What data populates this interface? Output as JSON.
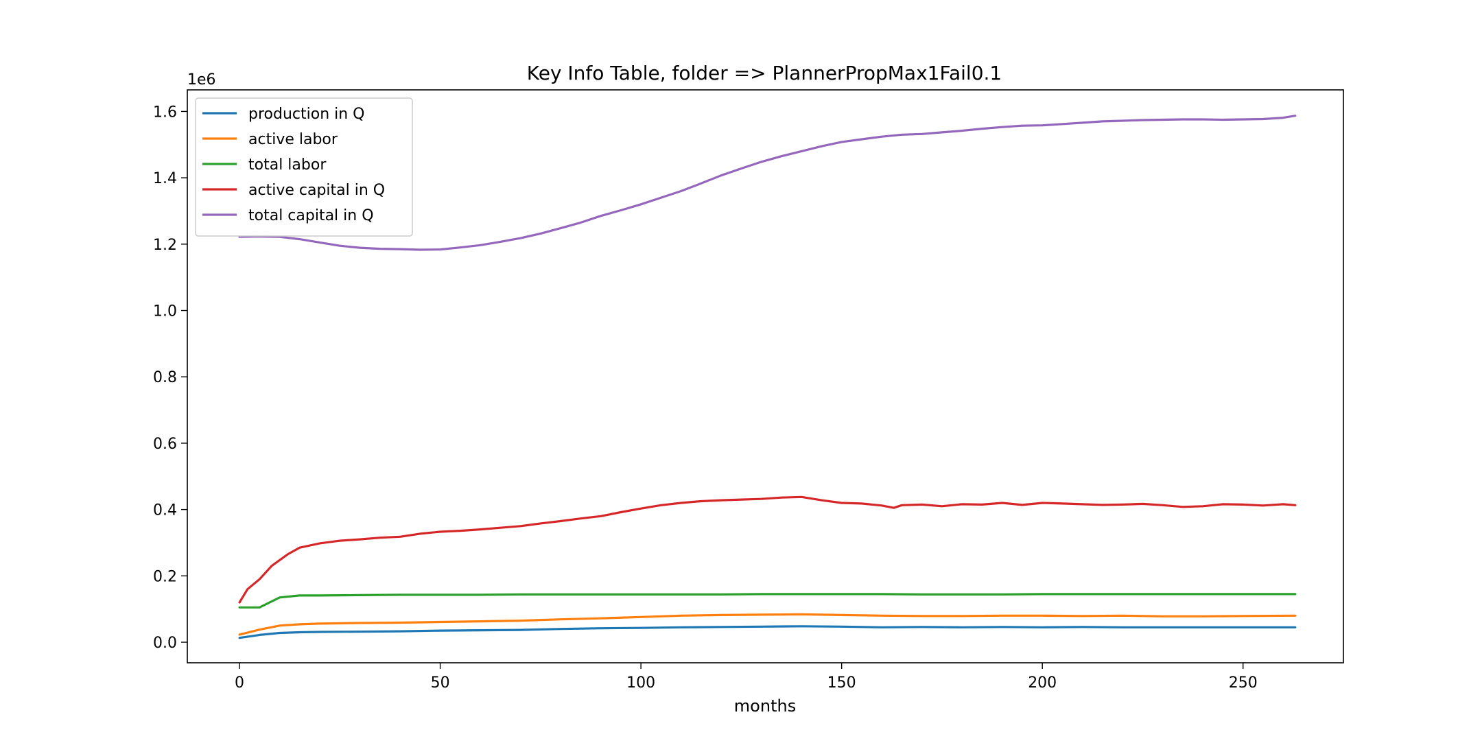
{
  "chart_data": {
    "type": "line",
    "title": "Key Info Table, folder => PlannerPropMax1Fail0.1",
    "xlabel": "months",
    "ylabel": "",
    "y_multiplier_label": "1e6",
    "xlim": [
      -13,
      275
    ],
    "ylim": [
      -0.062,
      1.665
    ],
    "x_ticks": [
      0,
      50,
      100,
      150,
      200,
      250
    ],
    "y_ticks": [
      0.0,
      0.2,
      0.4,
      0.6,
      0.8,
      1.0,
      1.2,
      1.4,
      1.6
    ],
    "x_tick_labels": [
      "0",
      "50",
      "100",
      "150",
      "200",
      "250"
    ],
    "y_tick_labels": [
      "0.0",
      "0.2",
      "0.4",
      "0.6",
      "0.8",
      "1.0",
      "1.2",
      "1.4",
      "1.6"
    ],
    "grid": false,
    "legend_position": "top-left",
    "series": [
      {
        "name": "production in Q",
        "color": "#1f77b4",
        "x": [
          0,
          5,
          10,
          15,
          20,
          30,
          40,
          50,
          60,
          70,
          80,
          90,
          100,
          110,
          120,
          130,
          140,
          150,
          160,
          170,
          180,
          190,
          200,
          210,
          220,
          230,
          240,
          250,
          263
        ],
        "values": [
          0.013,
          0.022,
          0.028,
          0.03,
          0.031,
          0.032,
          0.033,
          0.035,
          0.036,
          0.037,
          0.04,
          0.042,
          0.043,
          0.045,
          0.046,
          0.047,
          0.048,
          0.047,
          0.045,
          0.046,
          0.045,
          0.046,
          0.045,
          0.046,
          0.045,
          0.045,
          0.045,
          0.045,
          0.045
        ]
      },
      {
        "name": "active labor",
        "color": "#ff7f0e",
        "x": [
          0,
          5,
          10,
          15,
          20,
          30,
          40,
          50,
          60,
          70,
          80,
          90,
          100,
          110,
          120,
          130,
          140,
          150,
          160,
          170,
          180,
          190,
          200,
          210,
          220,
          230,
          240,
          250,
          263
        ],
        "values": [
          0.023,
          0.038,
          0.05,
          0.054,
          0.056,
          0.058,
          0.059,
          0.061,
          0.063,
          0.065,
          0.069,
          0.072,
          0.076,
          0.08,
          0.082,
          0.083,
          0.084,
          0.082,
          0.08,
          0.079,
          0.079,
          0.08,
          0.08,
          0.079,
          0.08,
          0.078,
          0.078,
          0.079,
          0.08
        ]
      },
      {
        "name": "total labor",
        "color": "#2ca02c",
        "x": [
          0,
          5,
          10,
          15,
          20,
          30,
          40,
          50,
          60,
          70,
          80,
          90,
          100,
          110,
          120,
          130,
          140,
          150,
          160,
          170,
          180,
          190,
          200,
          210,
          220,
          230,
          240,
          250,
          263
        ],
        "values": [
          0.105,
          0.105,
          0.135,
          0.141,
          0.141,
          0.142,
          0.143,
          0.143,
          0.143,
          0.144,
          0.144,
          0.144,
          0.144,
          0.144,
          0.144,
          0.145,
          0.145,
          0.145,
          0.145,
          0.144,
          0.144,
          0.144,
          0.145,
          0.145,
          0.145,
          0.145,
          0.145,
          0.145,
          0.145
        ]
      },
      {
        "name": "active capital in Q",
        "color": "#d62728",
        "x": [
          0,
          2,
          5,
          8,
          12,
          15,
          20,
          25,
          30,
          35,
          40,
          45,
          50,
          55,
          60,
          65,
          70,
          75,
          80,
          85,
          90,
          95,
          100,
          105,
          110,
          115,
          120,
          125,
          130,
          135,
          140,
          145,
          150,
          155,
          160,
          163,
          165,
          170,
          175,
          180,
          185,
          190,
          195,
          200,
          205,
          210,
          215,
          220,
          225,
          230,
          235,
          240,
          245,
          250,
          255,
          260,
          263
        ],
        "values": [
          0.12,
          0.16,
          0.19,
          0.23,
          0.265,
          0.285,
          0.298,
          0.306,
          0.31,
          0.315,
          0.318,
          0.327,
          0.333,
          0.336,
          0.34,
          0.345,
          0.35,
          0.358,
          0.365,
          0.373,
          0.38,
          0.392,
          0.403,
          0.413,
          0.42,
          0.425,
          0.428,
          0.43,
          0.432,
          0.436,
          0.438,
          0.428,
          0.42,
          0.418,
          0.412,
          0.405,
          0.413,
          0.415,
          0.41,
          0.416,
          0.415,
          0.42,
          0.414,
          0.42,
          0.418,
          0.416,
          0.414,
          0.415,
          0.417,
          0.413,
          0.408,
          0.41,
          0.416,
          0.415,
          0.412,
          0.416,
          0.413
        ]
      },
      {
        "name": "total capital in Q",
        "color": "#9467bd",
        "x": [
          0,
          5,
          10,
          15,
          20,
          25,
          30,
          35,
          40,
          45,
          50,
          55,
          60,
          65,
          70,
          75,
          80,
          85,
          90,
          95,
          100,
          105,
          110,
          115,
          120,
          125,
          130,
          135,
          140,
          145,
          150,
          155,
          160,
          165,
          170,
          175,
          180,
          185,
          190,
          195,
          200,
          205,
          210,
          215,
          220,
          225,
          230,
          235,
          240,
          245,
          250,
          255,
          260,
          263
        ],
        "values": [
          1.222,
          1.223,
          1.222,
          1.215,
          1.205,
          1.195,
          1.189,
          1.186,
          1.185,
          1.183,
          1.184,
          1.19,
          1.197,
          1.207,
          1.218,
          1.232,
          1.248,
          1.265,
          1.285,
          1.302,
          1.32,
          1.34,
          1.36,
          1.383,
          1.407,
          1.428,
          1.448,
          1.465,
          1.48,
          1.495,
          1.508,
          1.516,
          1.524,
          1.53,
          1.532,
          1.537,
          1.542,
          1.548,
          1.553,
          1.557,
          1.558,
          1.562,
          1.566,
          1.57,
          1.572,
          1.574,
          1.575,
          1.576,
          1.576,
          1.575,
          1.576,
          1.577,
          1.581,
          1.587
        ]
      }
    ]
  }
}
